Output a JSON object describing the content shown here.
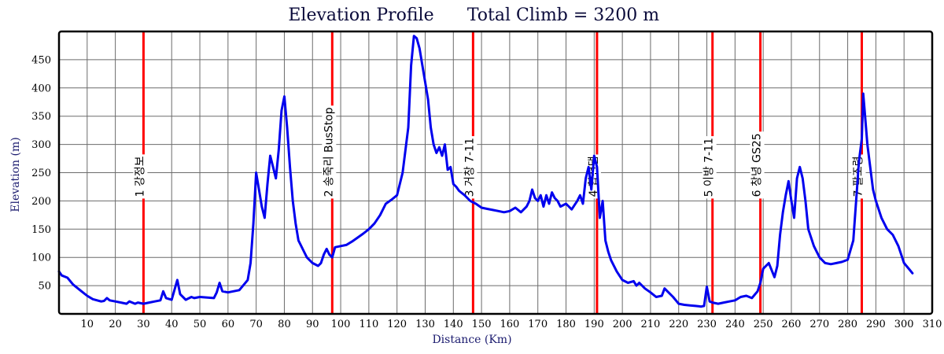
{
  "chart_data": {
    "type": "line",
    "title": "Elevation Profile",
    "subtitle": "Total Climb = 3200 m",
    "xlabel": "Distance (Km)",
    "ylabel": "Elevation (m)",
    "xlim": [
      0,
      310
    ],
    "ylim": [
      0,
      500
    ],
    "x_ticks": [
      10,
      20,
      30,
      40,
      50,
      60,
      70,
      80,
      90,
      100,
      110,
      120,
      130,
      140,
      150,
      160,
      170,
      180,
      190,
      200,
      210,
      220,
      230,
      240,
      250,
      260,
      270,
      280,
      290,
      300,
      310
    ],
    "y_ticks": [
      50,
      100,
      150,
      200,
      250,
      300,
      350,
      400,
      450
    ],
    "grid": true,
    "line_color": "#0000ee",
    "marker_color": "#ff0000",
    "markers": [
      {
        "x": 30,
        "label": "1 강정보"
      },
      {
        "x": 97,
        "label": "2 송죽리 BusStop"
      },
      {
        "x": 147,
        "label": "3 거창 7-11"
      },
      {
        "x": 191,
        "label": "4 합천댐"
      },
      {
        "x": 232,
        "label": "5 이방 7-11"
      },
      {
        "x": 249,
        "label": "6 창녕 GS25"
      },
      {
        "x": 285,
        "label": "7 팔조령"
      }
    ],
    "series": [
      {
        "x": [
          0,
          1,
          3,
          5,
          8,
          10,
          12,
          15,
          16,
          17,
          18,
          20,
          22,
          24,
          25,
          27,
          28,
          30,
          32,
          34,
          36,
          37,
          38,
          40,
          42,
          43,
          45,
          47,
          48,
          50,
          55,
          56,
          57,
          58,
          60,
          64,
          67,
          68,
          69,
          70,
          71,
          72,
          73,
          74,
          75,
          76,
          77,
          78,
          79,
          80,
          81,
          82,
          83,
          84,
          85,
          87,
          88,
          89,
          90,
          92,
          93,
          94,
          95,
          96,
          97,
          98,
          100,
          102,
          104,
          106,
          108,
          110,
          112,
          114,
          116,
          118,
          120,
          122,
          124,
          125,
          126,
          127,
          128,
          129,
          130,
          131,
          132,
          133,
          134,
          135,
          136,
          137,
          138,
          139,
          140,
          141,
          142,
          144,
          146,
          148,
          150,
          152,
          154,
          156,
          158,
          160,
          162,
          164,
          166,
          167,
          168,
          169,
          170,
          171,
          172,
          173,
          174,
          175,
          176,
          177,
          178,
          180,
          182,
          184,
          185,
          186,
          187,
          188,
          189,
          190,
          191,
          192,
          193,
          194,
          195,
          196,
          198,
          200,
          202,
          204,
          205,
          206,
          208,
          210,
          212,
          214,
          215,
          216,
          218,
          220,
          222,
          224,
          226,
          228,
          229,
          230,
          231,
          232,
          234,
          236,
          238,
          240,
          242,
          244,
          246,
          248,
          249,
          250,
          252,
          254,
          255,
          256,
          257,
          258,
          259,
          260,
          261,
          262,
          263,
          264,
          265,
          266,
          268,
          270,
          272,
          274,
          276,
          278,
          280,
          282,
          283,
          284,
          285,
          285.5,
          286,
          287,
          288,
          289,
          290,
          292,
          294,
          296,
          298,
          300,
          302,
          303
        ],
        "y": [
          75,
          68,
          64,
          52,
          40,
          32,
          26,
          22,
          23,
          28,
          24,
          22,
          20,
          18,
          22,
          18,
          20,
          18,
          20,
          22,
          24,
          40,
          28,
          25,
          60,
          35,
          25,
          30,
          28,
          30,
          28,
          38,
          55,
          40,
          38,
          42,
          60,
          90,
          160,
          250,
          220,
          190,
          170,
          230,
          280,
          260,
          240,
          290,
          360,
          385,
          330,
          260,
          200,
          160,
          130,
          110,
          100,
          95,
          90,
          85,
          90,
          105,
          115,
          105,
          100,
          118,
          120,
          122,
          128,
          135,
          142,
          150,
          160,
          175,
          195,
          202,
          210,
          250,
          330,
          440,
          492,
          488,
          470,
          440,
          410,
          380,
          330,
          300,
          285,
          295,
          280,
          300,
          255,
          260,
          230,
          225,
          218,
          210,
          200,
          195,
          188,
          186,
          184,
          182,
          180,
          182,
          188,
          180,
          190,
          200,
          220,
          205,
          200,
          210,
          190,
          210,
          195,
          215,
          205,
          200,
          190,
          195,
          185,
          200,
          210,
          195,
          240,
          260,
          220,
          280,
          260,
          170,
          200,
          130,
          110,
          95,
          75,
          60,
          55,
          58,
          50,
          55,
          45,
          38,
          30,
          32,
          45,
          40,
          30,
          18,
          16,
          15,
          14,
          13,
          14,
          48,
          22,
          20,
          18,
          20,
          22,
          24,
          30,
          32,
          28,
          40,
          55,
          80,
          90,
          65,
          85,
          140,
          180,
          210,
          235,
          200,
          170,
          240,
          260,
          240,
          200,
          150,
          120,
          100,
          90,
          88,
          90,
          92,
          96,
          130,
          200,
          270,
          310,
          390,
          360,
          300,
          260,
          220,
          200,
          170,
          150,
          140,
          120,
          90,
          78,
          72
        ]
      }
    ]
  }
}
